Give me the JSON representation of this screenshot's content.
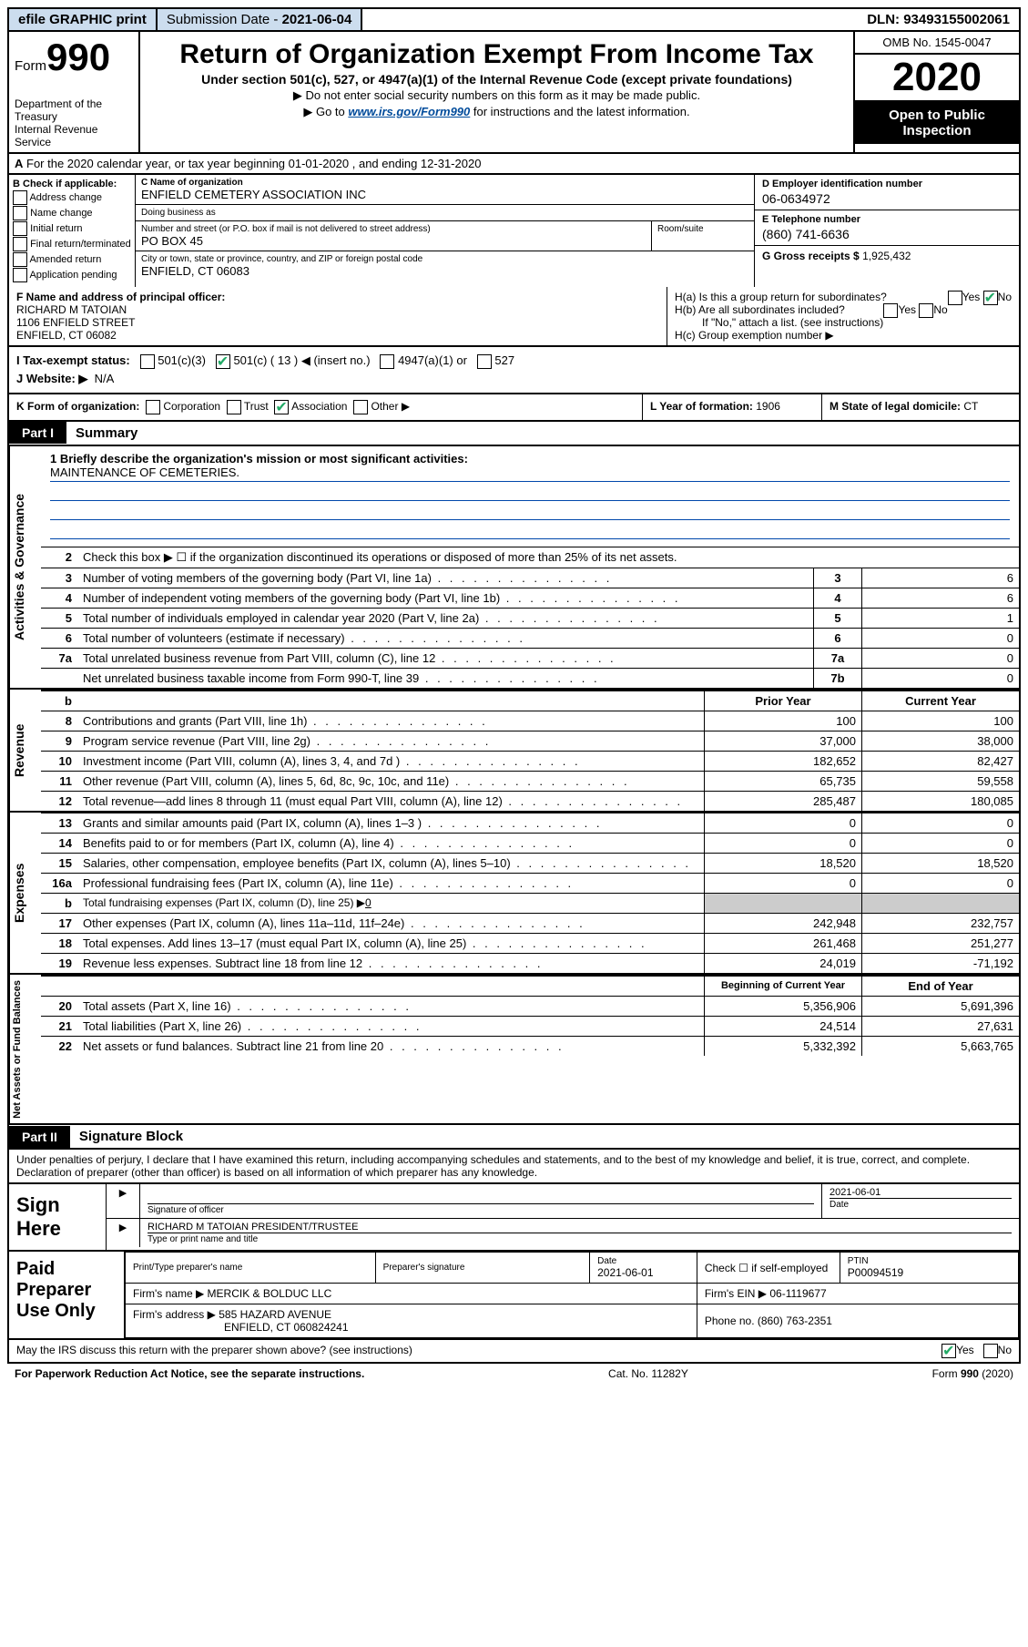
{
  "topbar": {
    "efile": "efile GRAPHIC print",
    "subdate_label": "Submission Date - ",
    "subdate": "2021-06-04",
    "dln_label": "DLN: ",
    "dln": "93493155002061"
  },
  "header": {
    "form_prefix": "Form",
    "form_no": "990",
    "dept1": "Department of the Treasury",
    "dept2": "Internal Revenue Service",
    "title": "Return of Organization Exempt From Income Tax",
    "sub": "Under section 501(c), 527, or 4947(a)(1) of the Internal Revenue Code (except private foundations)",
    "note1": "Do not enter social security numbers on this form as it may be made public.",
    "note2_pre": "Go to ",
    "note2_link": "www.irs.gov/Form990",
    "note2_post": " for instructions and the latest information.",
    "omb": "OMB No. 1545-0047",
    "year": "2020",
    "open": "Open to Public Inspection"
  },
  "row_a": {
    "text": "For the 2020 calendar year, or tax year beginning 01-01-2020  , and ending 12-31-2020"
  },
  "box_b": {
    "title": "B Check if applicable:",
    "addr": "Address change",
    "name": "Name change",
    "initial": "Initial return",
    "final": "Final return/terminated",
    "amended": "Amended return",
    "app": "Application pending"
  },
  "box_c": {
    "name_lbl": "C Name of organization",
    "name": "ENFIELD CEMETERY ASSOCIATION INC",
    "dba_lbl": "Doing business as",
    "dba": "",
    "street_lbl": "Number and street (or P.O. box if mail is not delivered to street address)",
    "street": "PO BOX 45",
    "suite_lbl": "Room/suite",
    "city_lbl": "City or town, state or province, country, and ZIP or foreign postal code",
    "city": "ENFIELD, CT  06083"
  },
  "box_d": {
    "ein_lbl": "D Employer identification number",
    "ein": "06-0634972",
    "tel_lbl": "E Telephone number",
    "tel": "(860) 741-6636",
    "gross_lbl": "G Gross receipts $ ",
    "gross": "1,925,432"
  },
  "box_f": {
    "lbl": "F Name and address of principal officer:",
    "name": "RICHARD M TATOIAN",
    "addr1": "1106 ENFIELD STREET",
    "addr2": "ENFIELD, CT  06082"
  },
  "box_h": {
    "ha": "H(a)  Is this a group return for subordinates?",
    "hb": "H(b)  Are all subordinates included?",
    "hb_note": "If \"No,\" attach a list. (see instructions)",
    "hc": "H(c)  Group exemption number ▶",
    "yes": "Yes",
    "no": "No"
  },
  "row_i": {
    "lbl": "I  Tax-exempt status:",
    "c3": "501(c)(3)",
    "c": "501(c) ( 13 ) ◀ (insert no.)",
    "a1": "4947(a)(1) or",
    "s527": "527"
  },
  "row_j": {
    "lbl": "J  Website: ▶",
    "val": "N/A"
  },
  "row_k": {
    "lbl": "K Form of organization:",
    "corp": "Corporation",
    "trust": "Trust",
    "assoc": "Association",
    "other": "Other ▶"
  },
  "row_l": {
    "lbl": "L Year of formation: ",
    "val": "1906"
  },
  "row_m": {
    "lbl": "M State of legal domicile: ",
    "val": "CT"
  },
  "part1": {
    "tab": "Part I",
    "title": "Summary"
  },
  "vlabels": {
    "gov": "Activities & Governance",
    "rev": "Revenue",
    "exp": "Expenses",
    "net": "Net Assets or Fund Balances"
  },
  "mission": {
    "lbl": "1  Briefly describe the organization's mission or most significant activities:",
    "text": "MAINTENANCE OF CEMETERIES."
  },
  "line2": "Check this box ▶ ☐  if the organization discontinued its operations or disposed of more than 25% of its net assets.",
  "lines_single": [
    {
      "n": "3",
      "d": "Number of voting members of the governing body (Part VI, line 1a)",
      "box": "3",
      "v": "6"
    },
    {
      "n": "4",
      "d": "Number of independent voting members of the governing body (Part VI, line 1b)",
      "box": "4",
      "v": "6"
    },
    {
      "n": "5",
      "d": "Total number of individuals employed in calendar year 2020 (Part V, line 2a)",
      "box": "5",
      "v": "1"
    },
    {
      "n": "6",
      "d": "Total number of volunteers (estimate if necessary)",
      "box": "6",
      "v": "0"
    },
    {
      "n": "7a",
      "d": "Total unrelated business revenue from Part VIII, column (C), line 12",
      "box": "7a",
      "v": "0"
    },
    {
      "n": "",
      "d": "Net unrelated business taxable income from Form 990-T, line 39",
      "box": "7b",
      "v": "0"
    }
  ],
  "col_hdr": {
    "b": "b",
    "prior": "Prior Year",
    "curr": "Current Year"
  },
  "revenue": [
    {
      "n": "8",
      "d": "Contributions and grants (Part VIII, line 1h)",
      "p": "100",
      "c": "100"
    },
    {
      "n": "9",
      "d": "Program service revenue (Part VIII, line 2g)",
      "p": "37,000",
      "c": "38,000"
    },
    {
      "n": "10",
      "d": "Investment income (Part VIII, column (A), lines 3, 4, and 7d )",
      "p": "182,652",
      "c": "82,427"
    },
    {
      "n": "11",
      "d": "Other revenue (Part VIII, column (A), lines 5, 6d, 8c, 9c, 10c, and 11e)",
      "p": "65,735",
      "c": "59,558"
    },
    {
      "n": "12",
      "d": "Total revenue—add lines 8 through 11 (must equal Part VIII, column (A), line 12)",
      "p": "285,487",
      "c": "180,085"
    }
  ],
  "expenses": [
    {
      "n": "13",
      "d": "Grants and similar amounts paid (Part IX, column (A), lines 1–3 )",
      "p": "0",
      "c": "0"
    },
    {
      "n": "14",
      "d": "Benefits paid to or for members (Part IX, column (A), line 4)",
      "p": "0",
      "c": "0"
    },
    {
      "n": "15",
      "d": "Salaries, other compensation, employee benefits (Part IX, column (A), lines 5–10)",
      "p": "18,520",
      "c": "18,520"
    },
    {
      "n": "16a",
      "d": "Professional fundraising fees (Part IX, column (A), line 11e)",
      "p": "0",
      "c": "0"
    }
  ],
  "exp_b": {
    "n": "b",
    "d": "Total fundraising expenses (Part IX, column (D), line 25) ▶",
    "v": "0"
  },
  "expenses2": [
    {
      "n": "17",
      "d": "Other expenses (Part IX, column (A), lines 11a–11d, 11f–24e)",
      "p": "242,948",
      "c": "232,757"
    },
    {
      "n": "18",
      "d": "Total expenses. Add lines 13–17 (must equal Part IX, column (A), line 25)",
      "p": "261,468",
      "c": "251,277"
    },
    {
      "n": "19",
      "d": "Revenue less expenses. Subtract line 18 from line 12",
      "p": "24,019",
      "c": "-71,192"
    }
  ],
  "net_hdr": {
    "b": "Beginning of Current Year",
    "e": "End of Year"
  },
  "net": [
    {
      "n": "20",
      "d": "Total assets (Part X, line 16)",
      "p": "5,356,906",
      "c": "5,691,396"
    },
    {
      "n": "21",
      "d": "Total liabilities (Part X, line 26)",
      "p": "24,514",
      "c": "27,631"
    },
    {
      "n": "22",
      "d": "Net assets or fund balances. Subtract line 21 from line 20",
      "p": "5,332,392",
      "c": "5,663,765"
    }
  ],
  "part2": {
    "tab": "Part II",
    "title": "Signature Block"
  },
  "perjury": "Under penalties of perjury, I declare that I have examined this return, including accompanying schedules and statements, and to the best of my knowledge and belief, it is true, correct, and complete. Declaration of preparer (other than officer) is based on all information of which preparer has any knowledge.",
  "sign": {
    "here": "Sign Here",
    "sig_lbl": "Signature of officer",
    "date_lbl": "Date",
    "date": "2021-06-01",
    "name": "RICHARD M TATOIAN  PRESIDENT/TRUSTEE",
    "name_lbl": "Type or print name and title"
  },
  "prep": {
    "title": "Paid Preparer Use Only",
    "pt_lbl": "Print/Type preparer's name",
    "sig_lbl": "Preparer's signature",
    "date_lbl": "Date",
    "date": "2021-06-01",
    "self_lbl": "Check ☐ if self-employed",
    "ptin_lbl": "PTIN",
    "ptin": "P00094519",
    "firm_lbl": "Firm's name    ▶",
    "firm": "MERCIK & BOLDUC LLC",
    "ein_lbl": "Firm's EIN ▶",
    "ein": "06-1119677",
    "addr_lbl": "Firm's address ▶",
    "addr1": "585 HAZARD AVENUE",
    "addr2": "ENFIELD, CT  060824241",
    "phone_lbl": "Phone no. ",
    "phone": "(860) 763-2351"
  },
  "discuss": {
    "q": "May the IRS discuss this return with the preparer shown above? (see instructions)",
    "yes": "Yes",
    "no": "No"
  },
  "footer": {
    "l": "For Paperwork Reduction Act Notice, see the separate instructions.",
    "m": "Cat. No. 11282Y",
    "r": "Form 990 (2020)"
  }
}
